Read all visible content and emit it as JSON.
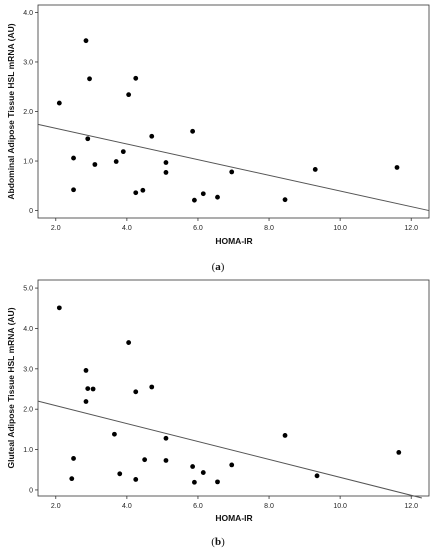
{
  "chart_data": [
    {
      "type": "scatter",
      "panel_label": "a",
      "xlabel": "HOMA-IR",
      "ylabel": "Abdominal Adipose Tissue HSL mRNA (AU)",
      "xlim": [
        1.5,
        12.5
      ],
      "ylim": [
        -0.15,
        4.15
      ],
      "xticks": [
        2.0,
        4.0,
        6.0,
        8.0,
        10.0,
        12.0
      ],
      "xtick_labels": [
        "2.0",
        "4.0",
        "6.0",
        "8.0",
        "10.0",
        "12.0"
      ],
      "yticks": [
        0,
        1.0,
        2.0,
        3.0,
        4.0
      ],
      "ytick_labels": [
        "0",
        "1.0",
        "2.0",
        "3.0",
        "4.0"
      ],
      "grid": false,
      "fit_line": {
        "x": [
          1.5,
          12.5
        ],
        "y": [
          1.74,
          0.0
        ]
      },
      "points": [
        {
          "x": 2.1,
          "y": 2.17
        },
        {
          "x": 2.5,
          "y": 1.06
        },
        {
          "x": 2.5,
          "y": 0.42
        },
        {
          "x": 2.85,
          "y": 3.43
        },
        {
          "x": 2.9,
          "y": 1.45
        },
        {
          "x": 2.95,
          "y": 2.66
        },
        {
          "x": 3.1,
          "y": 0.93
        },
        {
          "x": 3.7,
          "y": 0.99
        },
        {
          "x": 3.9,
          "y": 1.19
        },
        {
          "x": 4.05,
          "y": 2.34
        },
        {
          "x": 4.25,
          "y": 2.67
        },
        {
          "x": 4.25,
          "y": 0.36
        },
        {
          "x": 4.45,
          "y": 0.41
        },
        {
          "x": 4.7,
          "y": 1.5
        },
        {
          "x": 5.1,
          "y": 0.97
        },
        {
          "x": 5.1,
          "y": 0.77
        },
        {
          "x": 5.85,
          "y": 1.6
        },
        {
          "x": 5.9,
          "y": 0.21
        },
        {
          "x": 6.15,
          "y": 0.34
        },
        {
          "x": 6.55,
          "y": 0.27
        },
        {
          "x": 6.95,
          "y": 0.78
        },
        {
          "x": 8.45,
          "y": 0.22
        },
        {
          "x": 9.3,
          "y": 0.83
        },
        {
          "x": 11.6,
          "y": 0.87
        }
      ]
    },
    {
      "type": "scatter",
      "panel_label": "b",
      "xlabel": "HOMA-IR",
      "ylabel": "Gluteal Adipose Tissue HSL mRNA (AU)",
      "xlim": [
        1.5,
        12.5
      ],
      "ylim": [
        -0.15,
        5.2
      ],
      "xticks": [
        2.0,
        4.0,
        6.0,
        8.0,
        10.0,
        12.0
      ],
      "xtick_labels": [
        "2.0",
        "4.0",
        "6.0",
        "8.0",
        "10.0",
        "12.0"
      ],
      "yticks": [
        0,
        1.0,
        2.0,
        3.0,
        4.0,
        5.0
      ],
      "ytick_labels": [
        "0",
        "1.0",
        "2.0",
        "3.0",
        "4.0",
        "5.0"
      ],
      "grid": false,
      "fit_line": {
        "x": [
          1.5,
          12.3
        ],
        "y": [
          2.2,
          -0.2
        ]
      },
      "points": [
        {
          "x": 2.1,
          "y": 4.51
        },
        {
          "x": 2.5,
          "y": 0.78
        },
        {
          "x": 2.45,
          "y": 0.28
        },
        {
          "x": 2.85,
          "y": 2.96
        },
        {
          "x": 2.9,
          "y": 2.51
        },
        {
          "x": 2.85,
          "y": 2.19
        },
        {
          "x": 3.05,
          "y": 2.5
        },
        {
          "x": 3.65,
          "y": 1.38
        },
        {
          "x": 3.8,
          "y": 0.4
        },
        {
          "x": 4.05,
          "y": 3.65
        },
        {
          "x": 4.25,
          "y": 2.43
        },
        {
          "x": 4.25,
          "y": 0.26
        },
        {
          "x": 4.5,
          "y": 0.75
        },
        {
          "x": 4.7,
          "y": 2.55
        },
        {
          "x": 5.1,
          "y": 1.28
        },
        {
          "x": 5.1,
          "y": 0.73
        },
        {
          "x": 5.85,
          "y": 0.58
        },
        {
          "x": 5.9,
          "y": 0.19
        },
        {
          "x": 6.15,
          "y": 0.43
        },
        {
          "x": 6.55,
          "y": 0.2
        },
        {
          "x": 6.95,
          "y": 0.62
        },
        {
          "x": 8.45,
          "y": 1.35
        },
        {
          "x": 9.35,
          "y": 0.35
        },
        {
          "x": 11.65,
          "y": 0.93
        }
      ]
    }
  ]
}
